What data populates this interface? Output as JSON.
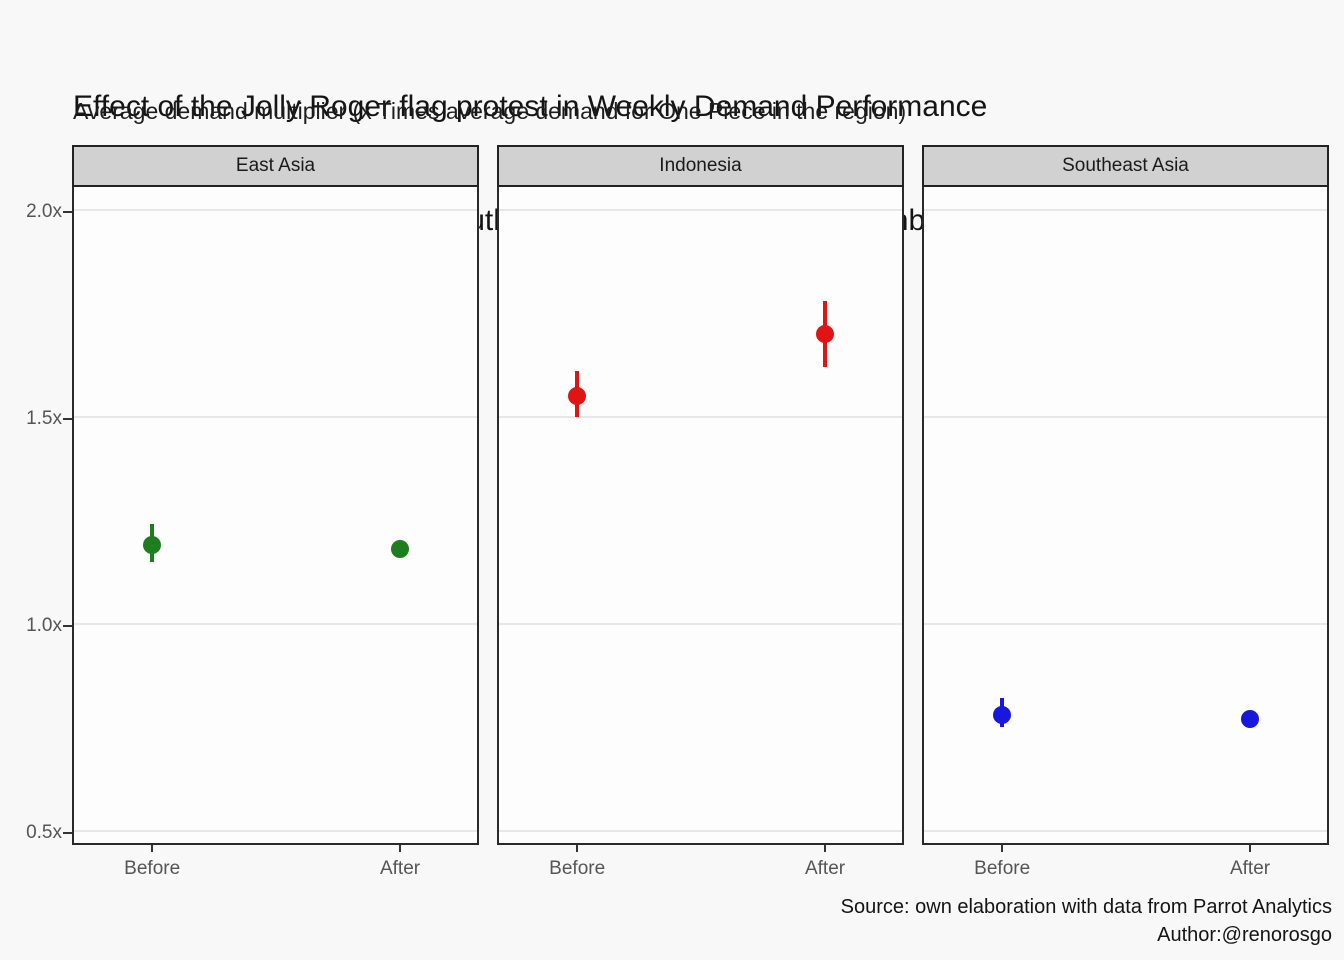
{
  "title": {
    "line1": "Effect of the Jolly Roger flag protest in Weekly Demand Performance",
    "line2": "for One Piece in East and  Southeast Asia (June 1st to September 13th)"
  },
  "subtitle": "Average demand multiplier (x Times average demand for One Piece in the region)",
  "caption": {
    "source": "Source: own elaboration with data from Parrot Analytics",
    "author": "Author:@renorosgo"
  },
  "colors": {
    "background": "#f8f8f8",
    "panel_background": "#fdfdfd",
    "strip_background": "#d1d1d1",
    "border": "#2a2a2a",
    "gridline": "#e7e7e7",
    "axis_text": "#555555",
    "east_asia": "#1e7d1e",
    "indonesia": "#e11414",
    "southeast_asia": "#1717dd"
  },
  "chart_data": {
    "type": "scatter",
    "subtype": "pointrange-faceted",
    "title": "Effect of the Jolly Roger flag protest in Weekly Demand Performance for One Piece in East and Southeast Asia (June 1st to September 13th)",
    "ylabel": "Average demand multiplier (x Times average demand for One Piece in the region)",
    "xlabel": "",
    "x_categories": [
      "Before",
      "After"
    ],
    "y_ticks": [
      {
        "value": 2.0,
        "label": "2.0x"
      },
      {
        "value": 1.5,
        "label": "1.5x"
      },
      {
        "value": 1.0,
        "label": "1.0x"
      },
      {
        "value": 0.5,
        "label": "0.5x"
      }
    ],
    "ylim": [
      0.47,
      2.06
    ],
    "grid": "horizontal-major-only",
    "legend_position": "none",
    "facets": [
      {
        "label": "East Asia",
        "color": "#1e7d1e",
        "points": [
          {
            "x": "Before",
            "y": 1.19,
            "ymin": 1.15,
            "ymax": 1.24
          },
          {
            "x": "After",
            "y": 1.18,
            "ymin": 1.16,
            "ymax": 1.2
          }
        ]
      },
      {
        "label": "Indonesia",
        "color": "#e11414",
        "points": [
          {
            "x": "Before",
            "y": 1.55,
            "ymin": 1.5,
            "ymax": 1.61
          },
          {
            "x": "After",
            "y": 1.7,
            "ymin": 1.62,
            "ymax": 1.78
          }
        ]
      },
      {
        "label": "Southeast Asia",
        "color": "#1717dd",
        "points": [
          {
            "x": "Before",
            "y": 0.78,
            "ymin": 0.75,
            "ymax": 0.82
          },
          {
            "x": "After",
            "y": 0.77,
            "ymin": 0.75,
            "ymax": 0.79
          }
        ]
      }
    ]
  }
}
